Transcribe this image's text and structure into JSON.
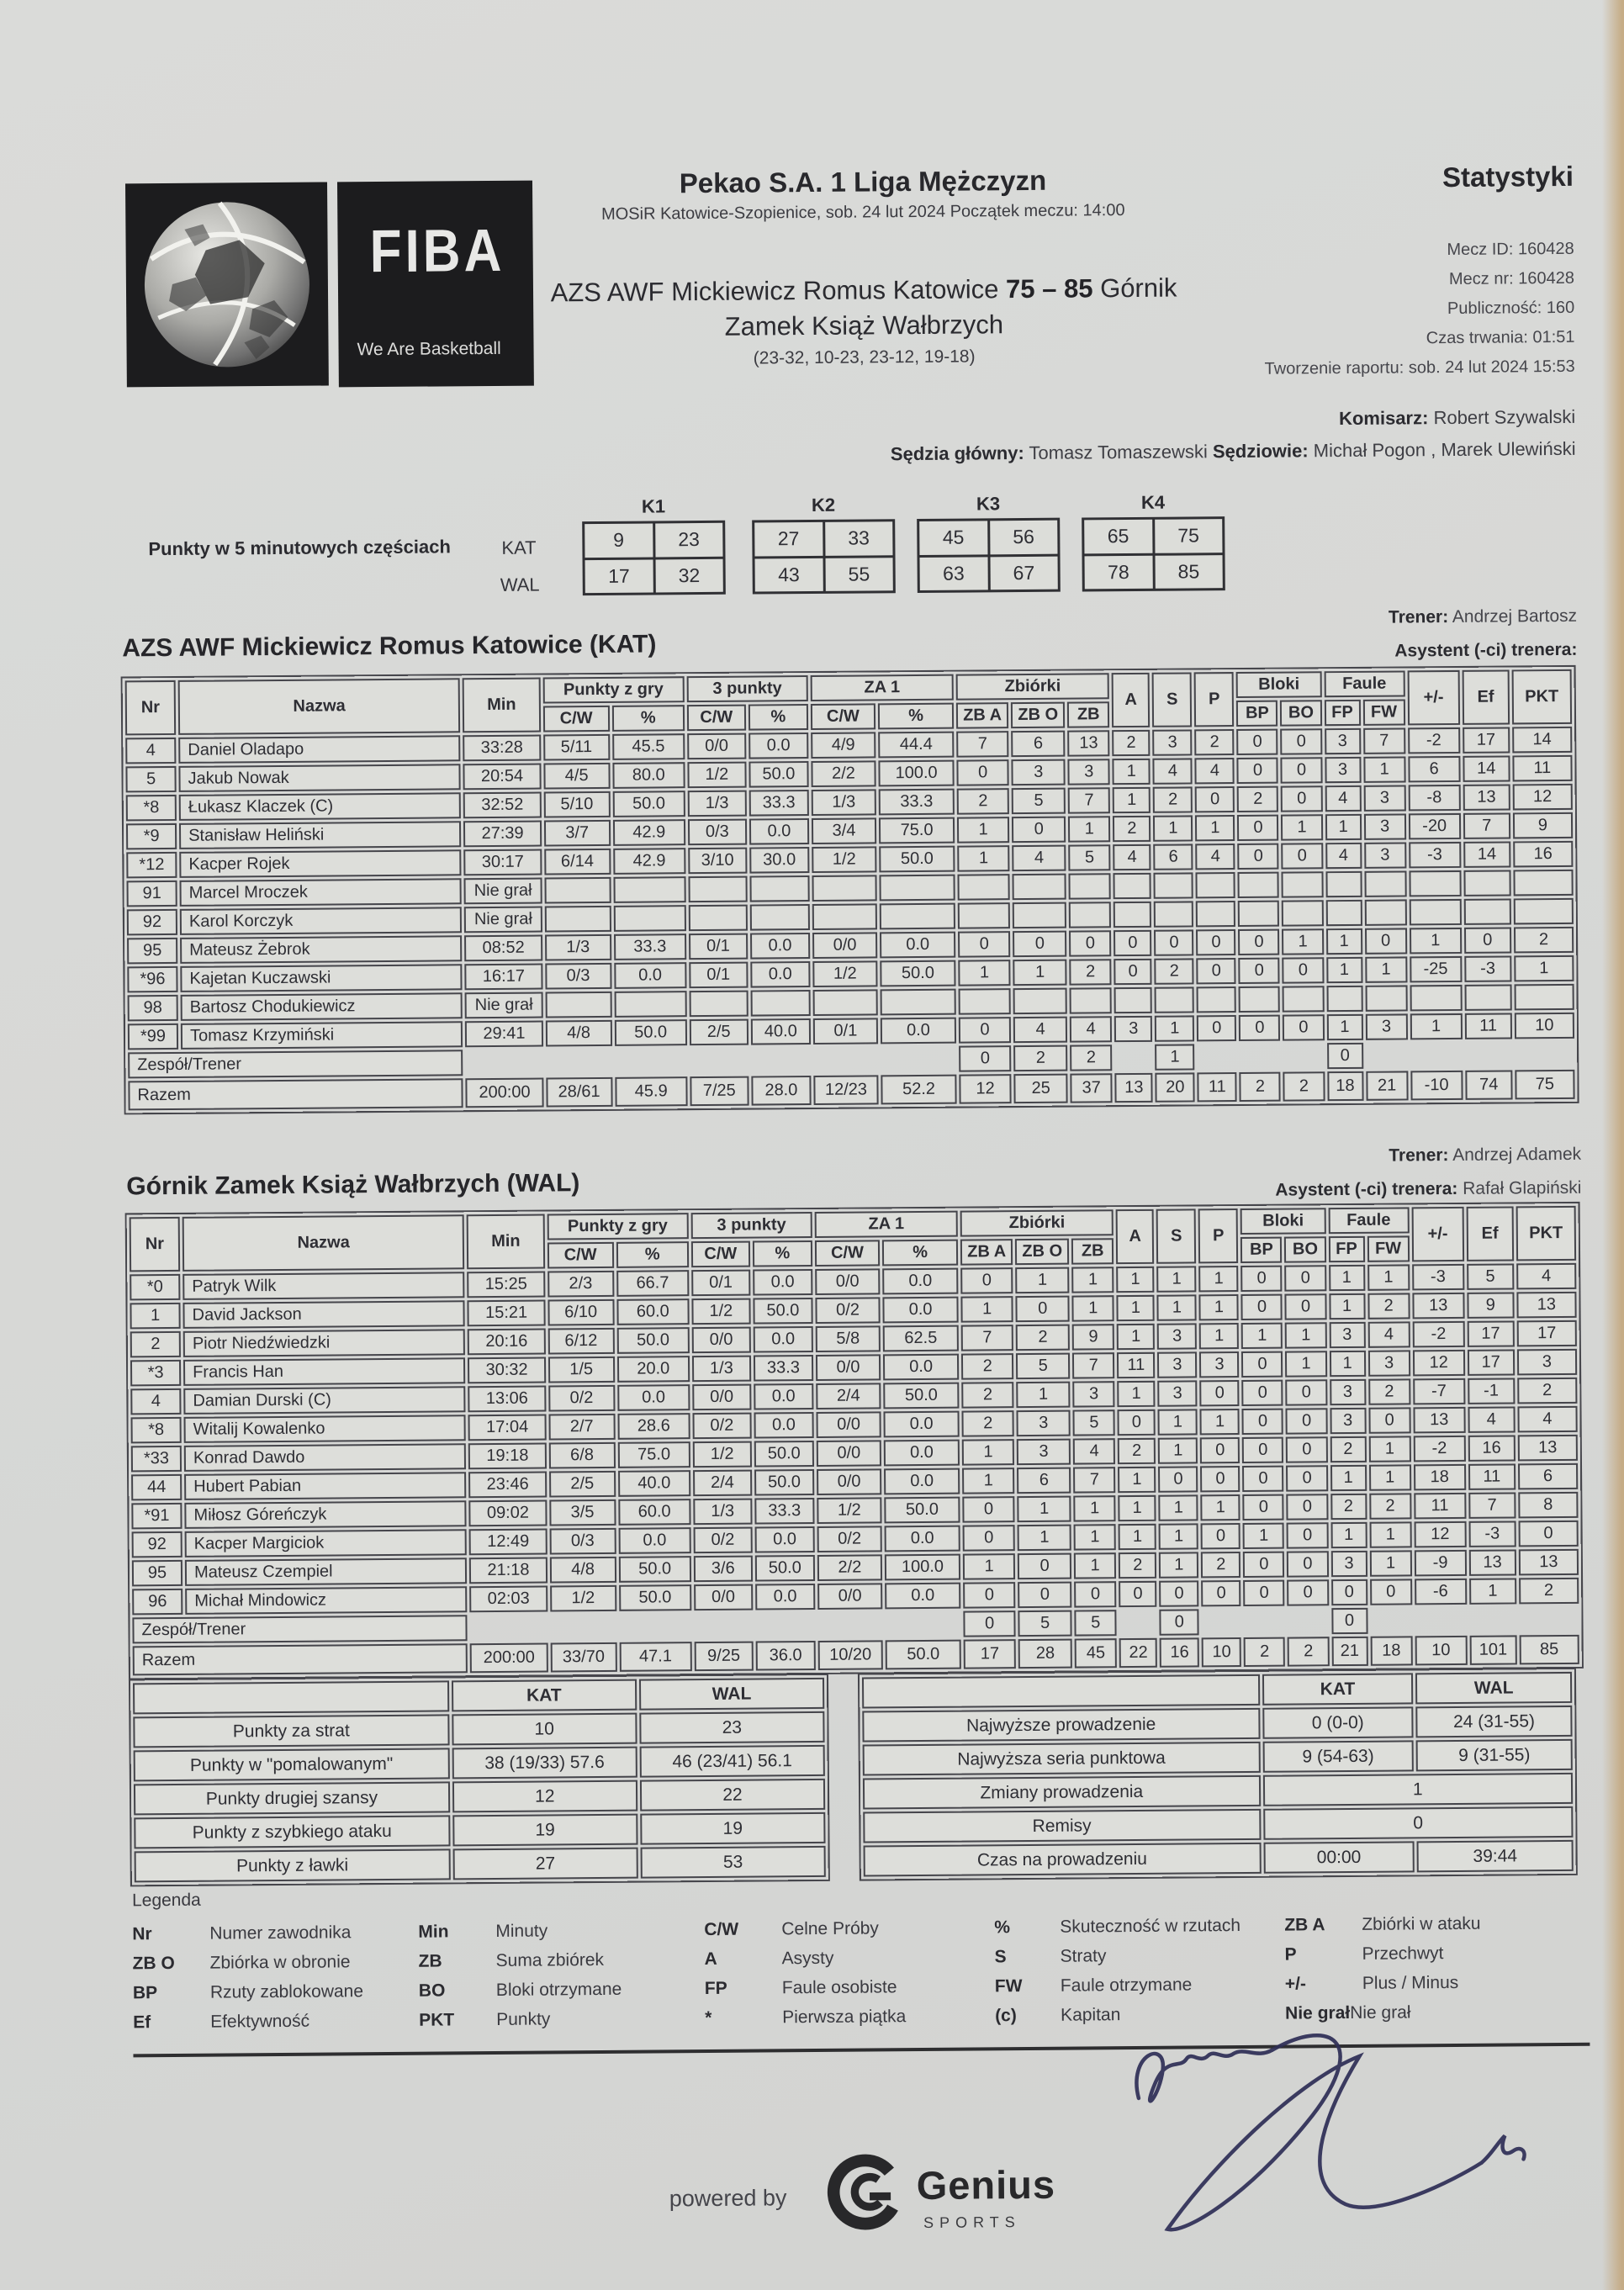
{
  "header": {
    "league_title": "Pekao S.A. 1 Liga Mężczyzn",
    "venue_line": "MOSiR Katowice-Szopienice, sob. 24 lut 2024 Początek meczu: 14:00",
    "stats_title": "Statystyki",
    "matchup": {
      "prefix": "AZS AWF Mickiewicz Romus Katowice",
      "score": "75 – 85",
      "suffix": "Górnik",
      "line2": "Zamek Książ Wałbrzych",
      "quarters": "(23-32, 10-23, 23-12, 19-18)"
    },
    "meta": [
      {
        "label": "Mecz ID:",
        "value": "160428"
      },
      {
        "label": "Mecz nr:",
        "value": "160428"
      },
      {
        "label": "Publiczność:",
        "value": "160"
      },
      {
        "label": "Czas trwania:",
        "value": "01:51"
      },
      {
        "label": "Tworzenie raportu:",
        "value": "sob. 24 lut 2024 15:53"
      }
    ],
    "officials": {
      "komisarz_label": "Komisarz:",
      "komisarz": "Robert Szywalski",
      "sedzia_glowny_label": "Sędzia główny:",
      "sedzia_glowny": "Tomasz Tomaszewski",
      "sedziowie_label": "Sędziowie:",
      "sedziowie": "Michał Pogon , Marek Ulewiński"
    },
    "fiba": {
      "wordmark": "FIBA",
      "tagline": "We Are Basketball"
    }
  },
  "quarter_scores": {
    "label": "Punkty w 5 minutowych częściach",
    "columns": [
      "K1",
      "K2",
      "K3",
      "K4"
    ],
    "rows": [
      {
        "team": "KAT",
        "values": [
          [
            "9",
            "23"
          ],
          [
            "27",
            "33"
          ],
          [
            "45",
            "56"
          ],
          [
            "65",
            "75"
          ]
        ]
      },
      {
        "team": "WAL",
        "values": [
          [
            "17",
            "32"
          ],
          [
            "43",
            "55"
          ],
          [
            "63",
            "67"
          ],
          [
            "78",
            "85"
          ]
        ]
      }
    ]
  },
  "table_headers": {
    "nr": "Nr",
    "nazwa": "Nazwa",
    "min": "Min",
    "punkty_z_gry": "Punkty z gry",
    "three": "3 punkty",
    "za1": "ZA 1",
    "zbiorki": "Zbiórki",
    "cw": "C/W",
    "pct": "%",
    "zba": "ZB A",
    "zbo": "ZB O",
    "zb": "ZB",
    "a": "A",
    "s": "S",
    "p": "P",
    "bloki": "Bloki",
    "bp": "BP",
    "bo": "BO",
    "faule": "Faule",
    "fp": "FP",
    "fw": "FW",
    "plusminus": "+/-",
    "ef": "Ef",
    "pkt": "PKT",
    "zespol": "Zespół/Trener",
    "razem": "Razem",
    "nie_gral": "Nie grał"
  },
  "teams": [
    {
      "name": "AZS AWF Mickiewicz Romus Katowice (KAT)",
      "trener_label": "Trener:",
      "trener": "Andrzej Bartosz",
      "asystent_label": "Asystent (-ci) trenera:",
      "asystent": "",
      "players": [
        {
          "nr": "4",
          "name": "Daniel Oladapo",
          "min": "33:28",
          "fg": "5/11",
          "fgp": "45.5",
          "tp": "0/0",
          "tpp": "0.0",
          "ft": "4/9",
          "ftp": "44.4",
          "zba": "7",
          "zbo": "6",
          "zb": "13",
          "a": "2",
          "s": "3",
          "p": "2",
          "bp": "0",
          "bo": "0",
          "fp": "3",
          "fw": "7",
          "pm": "-2",
          "ef": "17",
          "pkt": "14"
        },
        {
          "nr": "5",
          "name": "Jakub Nowak",
          "min": "20:54",
          "fg": "4/5",
          "fgp": "80.0",
          "tp": "1/2",
          "tpp": "50.0",
          "ft": "2/2",
          "ftp": "100.0",
          "zba": "0",
          "zbo": "3",
          "zb": "3",
          "a": "1",
          "s": "4",
          "p": "4",
          "bp": "0",
          "bo": "0",
          "fp": "3",
          "fw": "1",
          "pm": "6",
          "ef": "14",
          "pkt": "11"
        },
        {
          "nr": "*8",
          "name": "Łukasz Klaczek (C)",
          "min": "32:52",
          "fg": "5/10",
          "fgp": "50.0",
          "tp": "1/3",
          "tpp": "33.3",
          "ft": "1/3",
          "ftp": "33.3",
          "zba": "2",
          "zbo": "5",
          "zb": "7",
          "a": "1",
          "s": "2",
          "p": "0",
          "bp": "2",
          "bo": "0",
          "fp": "4",
          "fw": "3",
          "pm": "-8",
          "ef": "13",
          "pkt": "12"
        },
        {
          "nr": "*9",
          "name": "Stanisław Heliński",
          "min": "27:39",
          "fg": "3/7",
          "fgp": "42.9",
          "tp": "0/3",
          "tpp": "0.0",
          "ft": "3/4",
          "ftp": "75.0",
          "zba": "1",
          "zbo": "0",
          "zb": "1",
          "a": "2",
          "s": "1",
          "p": "1",
          "bp": "0",
          "bo": "1",
          "fp": "1",
          "fw": "3",
          "pm": "-20",
          "ef": "7",
          "pkt": "9"
        },
        {
          "nr": "*12",
          "name": "Kacper Rojek",
          "min": "30:17",
          "fg": "6/14",
          "fgp": "42.9",
          "tp": "3/10",
          "tpp": "30.0",
          "ft": "1/2",
          "ftp": "50.0",
          "zba": "1",
          "zbo": "4",
          "zb": "5",
          "a": "4",
          "s": "6",
          "p": "4",
          "bp": "0",
          "bo": "0",
          "fp": "4",
          "fw": "3",
          "pm": "-3",
          "ef": "14",
          "pkt": "16"
        },
        {
          "nr": "91",
          "name": "Marcel Mroczek",
          "min": "Nie grał",
          "fg": "",
          "fgp": "",
          "tp": "",
          "tpp": "",
          "ft": "",
          "ftp": "",
          "zba": "",
          "zbo": "",
          "zb": "",
          "a": "",
          "s": "",
          "p": "",
          "bp": "",
          "bo": "",
          "fp": "",
          "fw": "",
          "pm": "",
          "ef": "",
          "pkt": ""
        },
        {
          "nr": "92",
          "name": "Karol Korczyk",
          "min": "Nie grał",
          "fg": "",
          "fgp": "",
          "tp": "",
          "tpp": "",
          "ft": "",
          "ftp": "",
          "zba": "",
          "zbo": "",
          "zb": "",
          "a": "",
          "s": "",
          "p": "",
          "bp": "",
          "bo": "",
          "fp": "",
          "fw": "",
          "pm": "",
          "ef": "",
          "pkt": ""
        },
        {
          "nr": "95",
          "name": "Mateusz Żebrok",
          "min": "08:52",
          "fg": "1/3",
          "fgp": "33.3",
          "tp": "0/1",
          "tpp": "0.0",
          "ft": "0/0",
          "ftp": "0.0",
          "zba": "0",
          "zbo": "0",
          "zb": "0",
          "a": "0",
          "s": "0",
          "p": "0",
          "bp": "0",
          "bo": "1",
          "fp": "1",
          "fw": "0",
          "pm": "1",
          "ef": "0",
          "pkt": "2"
        },
        {
          "nr": "*96",
          "name": "Kajetan Kuczawski",
          "min": "16:17",
          "fg": "0/3",
          "fgp": "0.0",
          "tp": "0/1",
          "tpp": "0.0",
          "ft": "1/2",
          "ftp": "50.0",
          "zba": "1",
          "zbo": "1",
          "zb": "2",
          "a": "0",
          "s": "2",
          "p": "0",
          "bp": "0",
          "bo": "0",
          "fp": "1",
          "fw": "1",
          "pm": "-25",
          "ef": "-3",
          "pkt": "1"
        },
        {
          "nr": "98",
          "name": "Bartosz Chodukiewicz",
          "min": "Nie grał",
          "fg": "",
          "fgp": "",
          "tp": "",
          "tpp": "",
          "ft": "",
          "ftp": "",
          "zba": "",
          "zbo": "",
          "zb": "",
          "a": "",
          "s": "",
          "p": "",
          "bp": "",
          "bo": "",
          "fp": "",
          "fw": "",
          "pm": "",
          "ef": "",
          "pkt": ""
        },
        {
          "nr": "*99",
          "name": "Tomasz Krzymiński",
          "min": "29:41",
          "fg": "4/8",
          "fgp": "50.0",
          "tp": "2/5",
          "tpp": "40.0",
          "ft": "0/1",
          "ftp": "0.0",
          "zba": "0",
          "zbo": "4",
          "zb": "4",
          "a": "3",
          "s": "1",
          "p": "0",
          "bp": "0",
          "bo": "0",
          "fp": "1",
          "fw": "3",
          "pm": "1",
          "ef": "11",
          "pkt": "10"
        }
      ],
      "zespol": {
        "zba": "0",
        "zbo": "2",
        "zb": "2",
        "s": "1",
        "fp": "0"
      },
      "razem": {
        "min": "200:00",
        "fg": "28/61",
        "fgp": "45.9",
        "tp": "7/25",
        "tpp": "28.0",
        "ft": "12/23",
        "ftp": "52.2",
        "zba": "12",
        "zbo": "25",
        "zb": "37",
        "a": "13",
        "s": "20",
        "p": "11",
        "bp": "2",
        "bo": "2",
        "fp": "18",
        "fw": "21",
        "pm": "-10",
        "ef": "74",
        "pkt": "75"
      }
    },
    {
      "name": "Górnik Zamek Książ Wałbrzych (WAL)",
      "trener_label": "Trener:",
      "trener": "Andrzej Adamek",
      "asystent_label": "Asystent (-ci) trenera:",
      "asystent": "Rafał Glapiński",
      "players": [
        {
          "nr": "*0",
          "name": "Patryk Wilk",
          "min": "15:25",
          "fg": "2/3",
          "fgp": "66.7",
          "tp": "0/1",
          "tpp": "0.0",
          "ft": "0/0",
          "ftp": "0.0",
          "zba": "0",
          "zbo": "1",
          "zb": "1",
          "a": "1",
          "s": "1",
          "p": "1",
          "bp": "0",
          "bo": "0",
          "fp": "1",
          "fw": "1",
          "pm": "-3",
          "ef": "5",
          "pkt": "4"
        },
        {
          "nr": "1",
          "name": "David Jackson",
          "min": "15:21",
          "fg": "6/10",
          "fgp": "60.0",
          "tp": "1/2",
          "tpp": "50.0",
          "ft": "0/2",
          "ftp": "0.0",
          "zba": "1",
          "zbo": "0",
          "zb": "1",
          "a": "1",
          "s": "1",
          "p": "1",
          "bp": "0",
          "bo": "0",
          "fp": "1",
          "fw": "2",
          "pm": "13",
          "ef": "9",
          "pkt": "13"
        },
        {
          "nr": "2",
          "name": "Piotr Niedźwiedzki",
          "min": "20:16",
          "fg": "6/12",
          "fgp": "50.0",
          "tp": "0/0",
          "tpp": "0.0",
          "ft": "5/8",
          "ftp": "62.5",
          "zba": "7",
          "zbo": "2",
          "zb": "9",
          "a": "1",
          "s": "3",
          "p": "1",
          "bp": "1",
          "bo": "1",
          "fp": "3",
          "fw": "4",
          "pm": "-2",
          "ef": "17",
          "pkt": "17"
        },
        {
          "nr": "*3",
          "name": "Francis Han",
          "min": "30:32",
          "fg": "1/5",
          "fgp": "20.0",
          "tp": "1/3",
          "tpp": "33.3",
          "ft": "0/0",
          "ftp": "0.0",
          "zba": "2",
          "zbo": "5",
          "zb": "7",
          "a": "11",
          "s": "3",
          "p": "3",
          "bp": "0",
          "bo": "1",
          "fp": "1",
          "fw": "3",
          "pm": "12",
          "ef": "17",
          "pkt": "3"
        },
        {
          "nr": "4",
          "name": "Damian Durski (C)",
          "min": "13:06",
          "fg": "0/2",
          "fgp": "0.0",
          "tp": "0/0",
          "tpp": "0.0",
          "ft": "2/4",
          "ftp": "50.0",
          "zba": "2",
          "zbo": "1",
          "zb": "3",
          "a": "1",
          "s": "3",
          "p": "0",
          "bp": "0",
          "bo": "0",
          "fp": "3",
          "fw": "2",
          "pm": "-7",
          "ef": "-1",
          "pkt": "2"
        },
        {
          "nr": "*8",
          "name": "Witalij Kowalenko",
          "min": "17:04",
          "fg": "2/7",
          "fgp": "28.6",
          "tp": "0/2",
          "tpp": "0.0",
          "ft": "0/0",
          "ftp": "0.0",
          "zba": "2",
          "zbo": "3",
          "zb": "5",
          "a": "0",
          "s": "1",
          "p": "1",
          "bp": "0",
          "bo": "0",
          "fp": "3",
          "fw": "0",
          "pm": "13",
          "ef": "4",
          "pkt": "4"
        },
        {
          "nr": "*33",
          "name": "Konrad Dawdo",
          "min": "19:18",
          "fg": "6/8",
          "fgp": "75.0",
          "tp": "1/2",
          "tpp": "50.0",
          "ft": "0/0",
          "ftp": "0.0",
          "zba": "1",
          "zbo": "3",
          "zb": "4",
          "a": "2",
          "s": "1",
          "p": "0",
          "bp": "0",
          "bo": "0",
          "fp": "2",
          "fw": "1",
          "pm": "-2",
          "ef": "16",
          "pkt": "13"
        },
        {
          "nr": "44",
          "name": "Hubert Pabian",
          "min": "23:46",
          "fg": "2/5",
          "fgp": "40.0",
          "tp": "2/4",
          "tpp": "50.0",
          "ft": "0/0",
          "ftp": "0.0",
          "zba": "1",
          "zbo": "6",
          "zb": "7",
          "a": "1",
          "s": "0",
          "p": "0",
          "bp": "0",
          "bo": "0",
          "fp": "1",
          "fw": "1",
          "pm": "18",
          "ef": "11",
          "pkt": "6"
        },
        {
          "nr": "*91",
          "name": "Miłosz Góreńczyk",
          "min": "09:02",
          "fg": "3/5",
          "fgp": "60.0",
          "tp": "1/3",
          "tpp": "33.3",
          "ft": "1/2",
          "ftp": "50.0",
          "zba": "0",
          "zbo": "1",
          "zb": "1",
          "a": "1",
          "s": "1",
          "p": "1",
          "bp": "0",
          "bo": "0",
          "fp": "2",
          "fw": "2",
          "pm": "11",
          "ef": "7",
          "pkt": "8"
        },
        {
          "nr": "92",
          "name": "Kacper Margiciok",
          "min": "12:49",
          "fg": "0/3",
          "fgp": "0.0",
          "tp": "0/2",
          "tpp": "0.0",
          "ft": "0/2",
          "ftp": "0.0",
          "zba": "0",
          "zbo": "1",
          "zb": "1",
          "a": "1",
          "s": "1",
          "p": "0",
          "bp": "1",
          "bo": "0",
          "fp": "1",
          "fw": "1",
          "pm": "12",
          "ef": "-3",
          "pkt": "0"
        },
        {
          "nr": "95",
          "name": "Mateusz Czempiel",
          "min": "21:18",
          "fg": "4/8",
          "fgp": "50.0",
          "tp": "3/6",
          "tpp": "50.0",
          "ft": "2/2",
          "ftp": "100.0",
          "zba": "1",
          "zbo": "0",
          "zb": "1",
          "a": "2",
          "s": "1",
          "p": "2",
          "bp": "0",
          "bo": "0",
          "fp": "3",
          "fw": "1",
          "pm": "-9",
          "ef": "13",
          "pkt": "13"
        },
        {
          "nr": "96",
          "name": "Michał Mindowicz",
          "min": "02:03",
          "fg": "1/2",
          "fgp": "50.0",
          "tp": "0/0",
          "tpp": "0.0",
          "ft": "0/0",
          "ftp": "0.0",
          "zba": "0",
          "zbo": "0",
          "zb": "0",
          "a": "0",
          "s": "0",
          "p": "0",
          "bp": "0",
          "bo": "0",
          "fp": "0",
          "fw": "0",
          "pm": "-6",
          "ef": "1",
          "pkt": "2"
        }
      ],
      "zespol": {
        "zba": "0",
        "zbo": "5",
        "zb": "5",
        "s": "0",
        "fp": "0"
      },
      "razem": {
        "min": "200:00",
        "fg": "33/70",
        "fgp": "47.1",
        "tp": "9/25",
        "tpp": "36.0",
        "ft": "10/20",
        "ftp": "50.0",
        "zba": "17",
        "zbo": "28",
        "zb": "45",
        "a": "22",
        "s": "16",
        "p": "10",
        "bp": "2",
        "bo": "2",
        "fp": "21",
        "fw": "18",
        "pm": "10",
        "ef": "101",
        "pkt": "85"
      }
    }
  ],
  "summary_left": {
    "col_headers": [
      "KAT",
      "WAL"
    ],
    "rows": [
      {
        "label": "Punkty za strat",
        "kat": "10",
        "wal": "23"
      },
      {
        "label": "Punkty w \"pomalowanym\"",
        "kat": "38 (19/33) 57.6",
        "wal": "46 (23/41) 56.1"
      },
      {
        "label": "Punkty drugiej szansy",
        "kat": "12",
        "wal": "22"
      },
      {
        "label": "Punkty z szybkiego ataku",
        "kat": "19",
        "wal": "19"
      },
      {
        "label": "Punkty z ławki",
        "kat": "27",
        "wal": "53"
      }
    ]
  },
  "summary_right": {
    "col_headers": [
      "KAT",
      "WAL"
    ],
    "rows": [
      {
        "label": "Najwyższe prowadzenie",
        "kat": "0 (0-0)",
        "wal": "24 (31-55)"
      },
      {
        "label": "Najwyższa seria punktowa",
        "kat": "9 (54-63)",
        "wal": "9 (31-55)"
      },
      {
        "label": "Zmiany prowadzenia",
        "value": "1"
      },
      {
        "label": "Remisy",
        "value": "0"
      },
      {
        "label": "Czas na prowadzeniu",
        "kat": "00:00",
        "wal": "39:44"
      }
    ]
  },
  "legend": {
    "title": "Legenda",
    "columns": [
      {
        "entries": [
          {
            "abbr": "Nr",
            "desc": "Numer zawodnika"
          },
          {
            "abbr": "ZB O",
            "desc": "Zbiórka w obronie"
          },
          {
            "abbr": "BP",
            "desc": "Rzuty zablokowane"
          },
          {
            "abbr": "Ef",
            "desc": "Efektywność"
          }
        ]
      },
      {
        "entries": [
          {
            "abbr": "Min",
            "desc": "Minuty"
          },
          {
            "abbr": "ZB",
            "desc": "Suma zbiórek"
          },
          {
            "abbr": "BO",
            "desc": "Bloki otrzymane"
          },
          {
            "abbr": "PKT",
            "desc": "Punkty"
          }
        ]
      },
      {
        "entries": [
          {
            "abbr": "C/W",
            "desc": "Celne Próby"
          },
          {
            "abbr": "A",
            "desc": "Asysty"
          },
          {
            "abbr": "FP",
            "desc": "Faule osobiste"
          },
          {
            "abbr": "*",
            "desc": "Pierwsza piątka"
          }
        ]
      },
      {
        "entries": [
          {
            "abbr": "%",
            "desc": "Skuteczność w rzutach"
          },
          {
            "abbr": "S",
            "desc": "Straty"
          },
          {
            "abbr": "FW",
            "desc": "Faule otrzymane"
          },
          {
            "abbr": "(c)",
            "desc": "Kapitan"
          }
        ]
      },
      {
        "entries": [
          {
            "abbr": "ZB A",
            "desc": "Zbiórki w ataku"
          },
          {
            "abbr": "P",
            "desc": "Przechwyt"
          },
          {
            "abbr": "+/-",
            "desc": "Plus / Minus"
          },
          {
            "abbr": "Nie grał",
            "desc": "Nie grał"
          }
        ]
      }
    ]
  },
  "footer": {
    "powered_by": "powered by",
    "brand": "Genius",
    "brand_sub": "SPORTS"
  }
}
